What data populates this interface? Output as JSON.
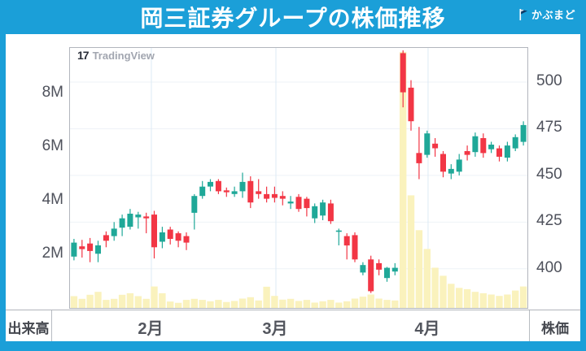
{
  "header": {
    "title": "岡三証券グループの株価推移",
    "brand": "かぶまど"
  },
  "watermark": {
    "logo_glyph": "17",
    "label": "TradingView"
  },
  "footer": {
    "left_label": "出来高",
    "right_label": "株価"
  },
  "chart_data": {
    "type": "candlestick_with_volume",
    "title": "岡三証券グループの株価推移",
    "price_axis": {
      "side": "right",
      "label": "株価",
      "ticks": [
        {
          "label": "500",
          "value": 500
        },
        {
          "label": "475",
          "value": 475
        },
        {
          "label": "450",
          "value": 450
        },
        {
          "label": "425",
          "value": 425
        },
        {
          "label": "400",
          "value": 400
        }
      ]
    },
    "volume_axis": {
      "side": "left",
      "label": "出来高",
      "ticks": [
        {
          "label": "8M",
          "value": 8
        },
        {
          "label": "6M",
          "value": 6
        },
        {
          "label": "4M",
          "value": 4
        },
        {
          "label": "2M",
          "value": 2
        }
      ]
    },
    "price_scale": {
      "min": 379,
      "max": 518.3
    },
    "volume_scale": {
      "max": 9.7,
      "unit": "M"
    },
    "months": [
      {
        "label": "2月",
        "boundary_index": 9.64
      },
      {
        "label": "3月",
        "boundary_index": 25.16
      },
      {
        "label": "4月",
        "boundary_index": 44.12
      }
    ],
    "colors": {
      "up": "#1fa898",
      "down": "#f23645",
      "volume": "#faf2bd",
      "grid_h": "#eef2f7",
      "grid_v": "#dceaf5",
      "frame_blue": "#1b9fd8"
    },
    "candles_format": [
      "open",
      "high",
      "low",
      "close",
      "volume_millions"
    ],
    "candles": [
      [
        406.5,
        416,
        404.5,
        414,
        0.44
      ],
      [
        412,
        415.5,
        406,
        410.5,
        0.34
      ],
      [
        413.5,
        416.5,
        403.5,
        409.5,
        0.49
      ],
      [
        408,
        415,
        403.5,
        412.5,
        0.6
      ],
      [
        418,
        420,
        411.5,
        415,
        0.3
      ],
      [
        417.5,
        425,
        415,
        421.5,
        0.34
      ],
      [
        422,
        429,
        417.5,
        427,
        0.49
      ],
      [
        422.5,
        432,
        421,
        429.5,
        0.55
      ],
      [
        427.5,
        430.5,
        421.5,
        429,
        0.44
      ],
      [
        428,
        430,
        419,
        427,
        0.34
      ],
      [
        429,
        431,
        405.5,
        411.5,
        0.8
      ],
      [
        414.5,
        422.5,
        411,
        419.5,
        0.55
      ],
      [
        421,
        422.5,
        413,
        416,
        0.24
      ],
      [
        419,
        420,
        411.5,
        415,
        0.19
      ],
      [
        417.5,
        419.5,
        410,
        414,
        0.3
      ],
      [
        430,
        440,
        421,
        439,
        0.34
      ],
      [
        439,
        447,
        437.5,
        444,
        0.3
      ],
      [
        444,
        448,
        441.5,
        446.5,
        0.25
      ],
      [
        447,
        448,
        440,
        441.5,
        0.3
      ],
      [
        442,
        443.5,
        438.5,
        441,
        0.22
      ],
      [
        440,
        444,
        438.5,
        441.5,
        0.26
      ],
      [
        441.5,
        451.5,
        438,
        446.5,
        0.35
      ],
      [
        447,
        449.5,
        432.5,
        435.5,
        0.4
      ],
      [
        441.5,
        448,
        437.5,
        440,
        0.28
      ],
      [
        440,
        444,
        435.5,
        437.5,
        0.79
      ],
      [
        440,
        444,
        435.5,
        438,
        0.45
      ],
      [
        439,
        441.5,
        434,
        437.5,
        0.31
      ],
      [
        435,
        439,
        432,
        436,
        0.34
      ],
      [
        438.5,
        440,
        430.5,
        432,
        0.26
      ],
      [
        437.5,
        438.5,
        428,
        432.5,
        0.3
      ],
      [
        427,
        435,
        424.5,
        433.5,
        0.2
      ],
      [
        428.5,
        437,
        426,
        435.5,
        0.25
      ],
      [
        435,
        437,
        424,
        425.5,
        0.3
      ],
      [
        420,
        421.5,
        412.5,
        420.5,
        0.2
      ],
      [
        417.5,
        419,
        405,
        412.5,
        0.25
      ],
      [
        418,
        419.5,
        403.5,
        405,
        0.35
      ],
      [
        398,
        403.5,
        396.5,
        402,
        0.42
      ],
      [
        405,
        407,
        387,
        388,
        0.5
      ],
      [
        403,
        405,
        396.5,
        399.5,
        0.35
      ],
      [
        395,
        401,
        393,
        400.5,
        0.3
      ],
      [
        398.5,
        403,
        396.5,
        400.5,
        0.28
      ],
      [
        515.5,
        517,
        486.5,
        494.5,
        9.55
      ],
      [
        497,
        501,
        474,
        479,
        4.2
      ],
      [
        462,
        476,
        448,
        456.5,
        2.9
      ],
      [
        461,
        474,
        459.5,
        472.5,
        2.2
      ],
      [
        467,
        470,
        460,
        464.5,
        1.5
      ],
      [
        461.5,
        463,
        449,
        452,
        1.2
      ],
      [
        451,
        456,
        448,
        453.5,
        0.9
      ],
      [
        452,
        461.5,
        450,
        458.5,
        0.75
      ],
      [
        463,
        466,
        458,
        461,
        0.7
      ],
      [
        462.5,
        473,
        460,
        471,
        0.6
      ],
      [
        470,
        472.5,
        459.5,
        462,
        0.55
      ],
      [
        464,
        468,
        462,
        466.5,
        0.5
      ],
      [
        464.5,
        466,
        457.5,
        460,
        0.45
      ],
      [
        459.5,
        468,
        457.5,
        466,
        0.5
      ],
      [
        464.5,
        472,
        463,
        470.5,
        0.65
      ],
      [
        468,
        479,
        466,
        477,
        0.8
      ]
    ]
  }
}
